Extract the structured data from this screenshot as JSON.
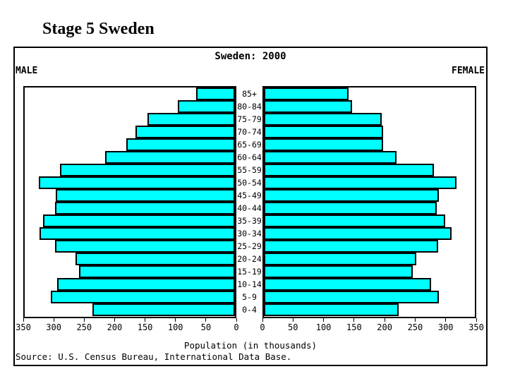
{
  "page": {
    "title": "Stage 5 Sweden"
  },
  "chart": {
    "title": "Sweden: 2000",
    "left_label": "MALE",
    "right_label": "FEMALE",
    "xlabel": "Population (in thousands)",
    "source": "Source: U.S. Census Bureau, International Data Base.",
    "colors": {
      "bar": "#00ffff",
      "bar_border": "#000000",
      "frame_border": "#000000",
      "background": "#ffffff",
      "text": "#000000"
    }
  },
  "chart_data": {
    "type": "bar",
    "subtype": "population-pyramid",
    "title": "Sweden: 2000",
    "xlabel": "Population (in thousands)",
    "axis_max": 350,
    "tick_step": 50,
    "grid": false,
    "categories": [
      "85+",
      "80-84",
      "75-79",
      "70-74",
      "65-69",
      "60-64",
      "55-59",
      "50-54",
      "45-49",
      "40-44",
      "35-39",
      "30-34",
      "25-29",
      "20-24",
      "15-19",
      "10-14",
      "5-9",
      "0-4"
    ],
    "series": [
      {
        "name": "MALE",
        "side": "left",
        "values": [
          65,
          95,
          146,
          166,
          181,
          216,
          291,
          327,
          298,
          299,
          320,
          325,
          300,
          265,
          260,
          296,
          307,
          237
        ]
      },
      {
        "name": "FEMALE",
        "side": "right",
        "values": [
          141,
          146,
          196,
          198,
          198,
          220,
          282,
          320,
          290,
          287,
          301,
          311,
          289,
          253,
          247,
          278,
          290,
          224
        ]
      }
    ],
    "ticks": {
      "male": [
        350,
        300,
        250,
        200,
        150,
        100,
        50,
        0
      ],
      "female": [
        0,
        50,
        100,
        150,
        200,
        250,
        300,
        350
      ]
    }
  }
}
